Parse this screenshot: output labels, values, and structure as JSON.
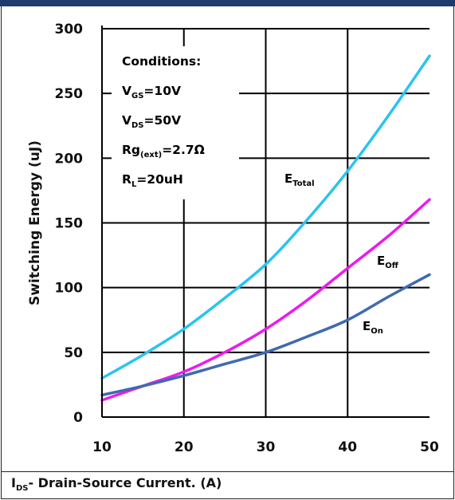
{
  "chart_data": {
    "type": "line",
    "xlabel": "I_DS - Drain-Source Current. (A)",
    "xlabel_main": "I",
    "xlabel_sub": "DS",
    "xlabel_rest": "- Drain-Source Current. (A)",
    "ylabel": "Switching Energy (uJ)",
    "xlim": [
      10,
      50
    ],
    "ylim": [
      0,
      300
    ],
    "xticks": [
      "10",
      "20",
      "30",
      "40",
      "50"
    ],
    "yticks": [
      "0",
      "50",
      "100",
      "150",
      "200",
      "250",
      "300"
    ],
    "grid": true,
    "annotations": {
      "conditions_title": "Conditions:",
      "conditions": [
        {
          "main": "V",
          "sub": "GS",
          "rest": "=10V"
        },
        {
          "main": "V",
          "sub": "DS",
          "rest": "=50V"
        },
        {
          "main": "Rg",
          "sub": "(ext)",
          "rest": "=2.7Ω"
        },
        {
          "main": "R",
          "sub": "L",
          "rest": "=20uH"
        }
      ]
    },
    "series": [
      {
        "name": "E_Total",
        "label_main": "E",
        "label_sub": "Total",
        "color": "#29c4ee",
        "x": [
          10,
          15,
          20,
          25,
          30,
          35,
          40,
          45,
          50
        ],
        "y": [
          30,
          48,
          68,
          92,
          118,
          152,
          190,
          233,
          279
        ]
      },
      {
        "name": "E_Off",
        "label_main": "E",
        "label_sub": "Off",
        "color": "#ee19ee",
        "x": [
          10,
          15,
          20,
          25,
          30,
          35,
          40,
          45,
          50
        ],
        "y": [
          13,
          24,
          35,
          50,
          68,
          90,
          115,
          140,
          168
        ]
      },
      {
        "name": "E_On",
        "label_main": "E",
        "label_sub": "On",
        "color": "#3f6ab0",
        "x": [
          10,
          15,
          20,
          25,
          30,
          35,
          40,
          45,
          50
        ],
        "y": [
          17,
          24,
          32,
          41,
          50,
          62,
          75,
          93,
          110
        ]
      }
    ]
  }
}
